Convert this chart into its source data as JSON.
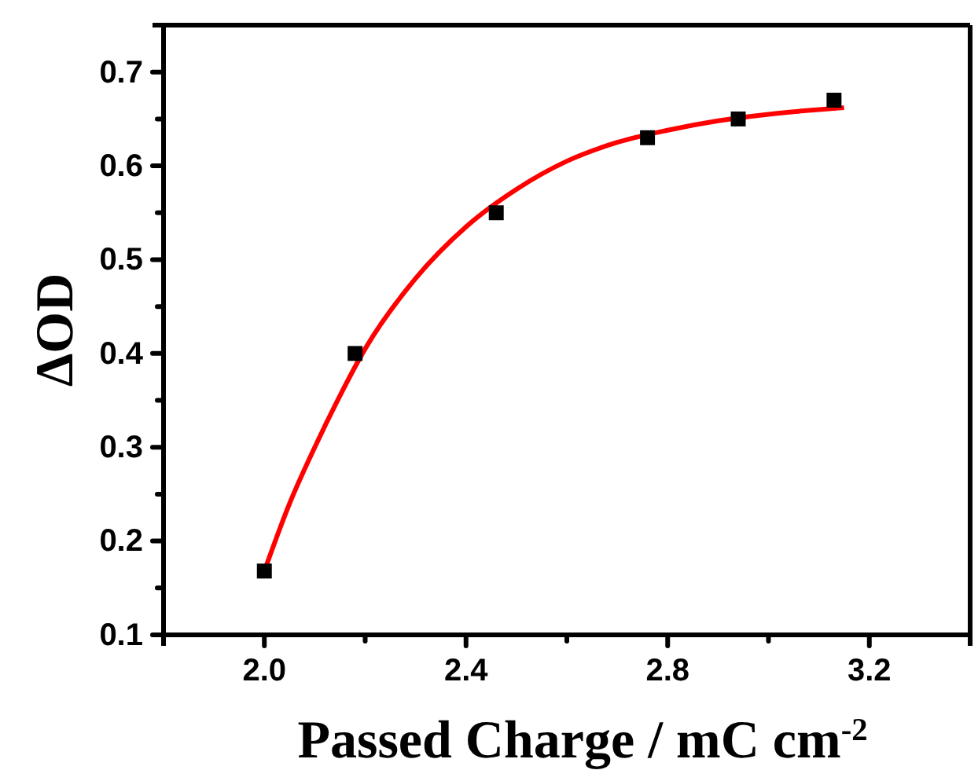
{
  "chart_data": {
    "type": "scatter",
    "xlabel": "Passed Charge / mC cm$^{-2}$",
    "ylabel": "ΔOD",
    "xlim": [
      1.8,
      3.4
    ],
    "ylim": [
      0.1,
      0.75
    ],
    "xticks": [
      {
        "value": 1.8,
        "label": null
      },
      {
        "value": 2.0,
        "label": "2.0"
      },
      {
        "value": 2.2,
        "label": null
      },
      {
        "value": 2.4,
        "label": "2.4"
      },
      {
        "value": 2.6,
        "label": null
      },
      {
        "value": 2.8,
        "label": "2.8"
      },
      {
        "value": 3.0,
        "label": null
      },
      {
        "value": 3.2,
        "label": "3.2"
      },
      {
        "value": 3.4,
        "label": null
      }
    ],
    "yticks": [
      0.1,
      {
        "value": 0.15,
        "label": null
      },
      0.2,
      {
        "value": 0.25,
        "label": null
      },
      0.3,
      {
        "value": 0.35,
        "label": null
      },
      0.4,
      {
        "value": 0.45,
        "label": null
      },
      0.5,
      {
        "value": 0.55,
        "label": null
      },
      0.6,
      {
        "value": 0.65,
        "label": null
      },
      0.7,
      {
        "value": 0.75,
        "label": null
      }
    ],
    "grid": false,
    "series": [
      {
        "type": "line",
        "color": "#ff0000",
        "marker": "none",
        "line_style": "solid",
        "x": [
          2.0,
          2.05,
          2.1,
          2.15,
          2.2,
          2.3,
          2.4,
          2.5,
          2.6,
          2.7,
          2.8,
          2.9,
          3.0,
          3.1,
          3.15
        ],
        "values": [
          0.168,
          0.24,
          0.3,
          0.355,
          0.405,
          0.48,
          0.535,
          0.575,
          0.605,
          0.625,
          0.638,
          0.648,
          0.655,
          0.66,
          0.662
        ]
      },
      {
        "color": "#000000",
        "marker": "square",
        "x": [
          2.0,
          2.18,
          2.46,
          2.76,
          2.94,
          3.13
        ],
        "values": [
          0.168,
          0.4,
          0.55,
          0.63,
          0.65,
          0.67
        ]
      }
    ]
  }
}
